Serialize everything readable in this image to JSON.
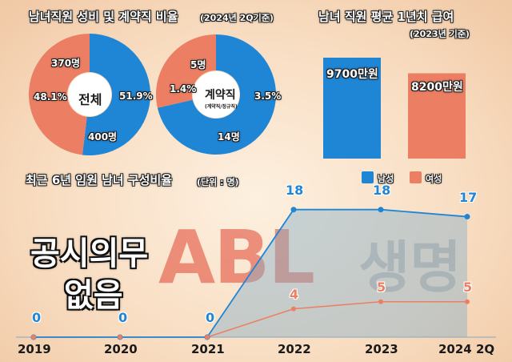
{
  "watermark": {
    "abl": "ABL",
    "life": "생명"
  },
  "notice": {
    "line1": "공시의무",
    "line2": "없음"
  },
  "colors": {
    "male": "#1f86d6",
    "female": "#ec7f63",
    "text_outline": "#1a1a1a"
  },
  "chart_data": [
    {
      "type": "pie",
      "title": "남녀직원 성비 및 계약직 비율",
      "subtitle": "(2024년 2Q기준)",
      "center_label": "전체",
      "slices": [
        {
          "label": "남성",
          "percent": 51.9,
          "count": 400,
          "percent_label": "51.9%",
          "count_label": "400명"
        },
        {
          "label": "여성",
          "percent": 48.1,
          "count": 370,
          "percent_label": "48.1%",
          "count_label": "370명"
        }
      ]
    },
    {
      "type": "pie",
      "center_label": "계약직",
      "center_sublabel": "(계약직/정규직)",
      "slices": [
        {
          "label": "남성",
          "percent": 3.5,
          "count": 14,
          "percent_label": "3.5%",
          "count_label": "14명"
        },
        {
          "label": "여성",
          "percent": 1.4,
          "count": 5,
          "percent_label": "1.4%",
          "count_label": "5명"
        }
      ]
    },
    {
      "type": "bar",
      "title": "남녀 직원 평균 1년치 급여",
      "subtitle": "(2023년 기준)",
      "categories": [
        "남성",
        "여성"
      ],
      "values": [
        9700,
        8200
      ],
      "value_labels": [
        "9700만원",
        "8200만원"
      ],
      "unit": "만원"
    },
    {
      "type": "area",
      "title": "최근 6년 임원 남녀 구성비율",
      "unit_label": "(단위 : 명)",
      "categories": [
        "2019",
        "2020",
        "2021",
        "2022",
        "2023",
        "2024 2Q"
      ],
      "series": [
        {
          "name": "남성",
          "values": [
            0,
            0,
            0,
            18,
            18,
            17
          ]
        },
        {
          "name": "여성",
          "values": [
            0,
            0,
            0,
            4,
            5,
            5
          ]
        }
      ],
      "ylim": [
        0,
        20
      ],
      "legend_position": "top-right",
      "legend": [
        {
          "label": "남성"
        },
        {
          "label": "여성"
        }
      ]
    }
  ]
}
